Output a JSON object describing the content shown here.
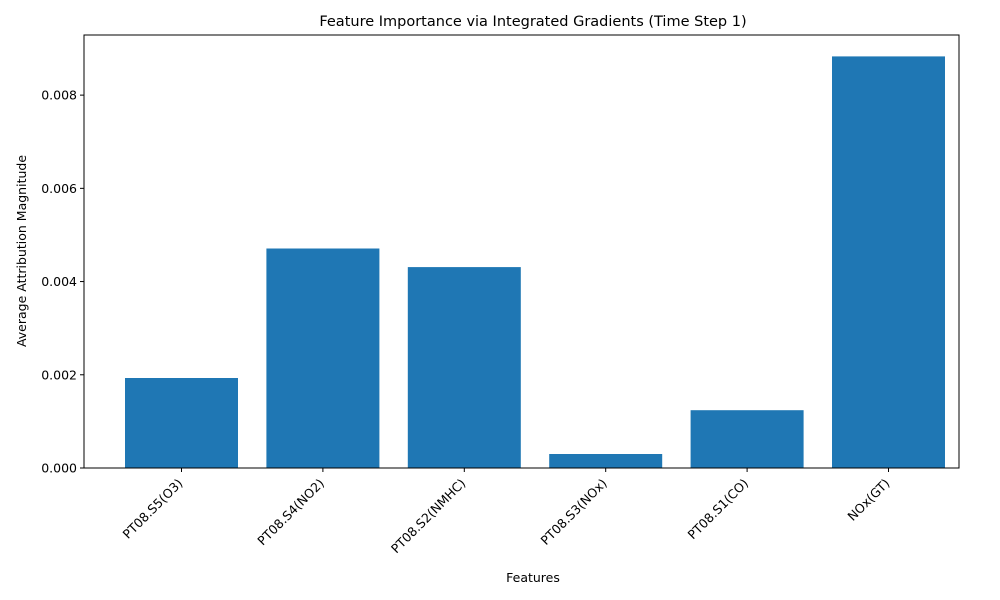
{
  "chart_data": {
    "type": "bar",
    "title": "Feature Importance via Integrated Gradients (Time Step 1)",
    "xlabel": "Features",
    "ylabel": "Average Attribution Magnitude",
    "categories": [
      "PT08.S5(O3)",
      "PT08.S4(NO2)",
      "PT08.S2(NMHC)",
      "PT08.S3(NOx)",
      "PT08.S1(CO)",
      "NOx(GT)"
    ],
    "values": [
      0.00193,
      0.00471,
      0.00431,
      0.0003,
      0.00124,
      0.00883
    ],
    "ylim": [
      0,
      0.00929
    ],
    "yticks": [
      "0.000",
      "0.002",
      "0.004",
      "0.006",
      "0.008"
    ],
    "ytick_values": [
      0,
      0.002,
      0.004,
      0.006,
      0.008
    ],
    "bar_color": "#1f77b4",
    "grid": false,
    "legend": "none"
  }
}
